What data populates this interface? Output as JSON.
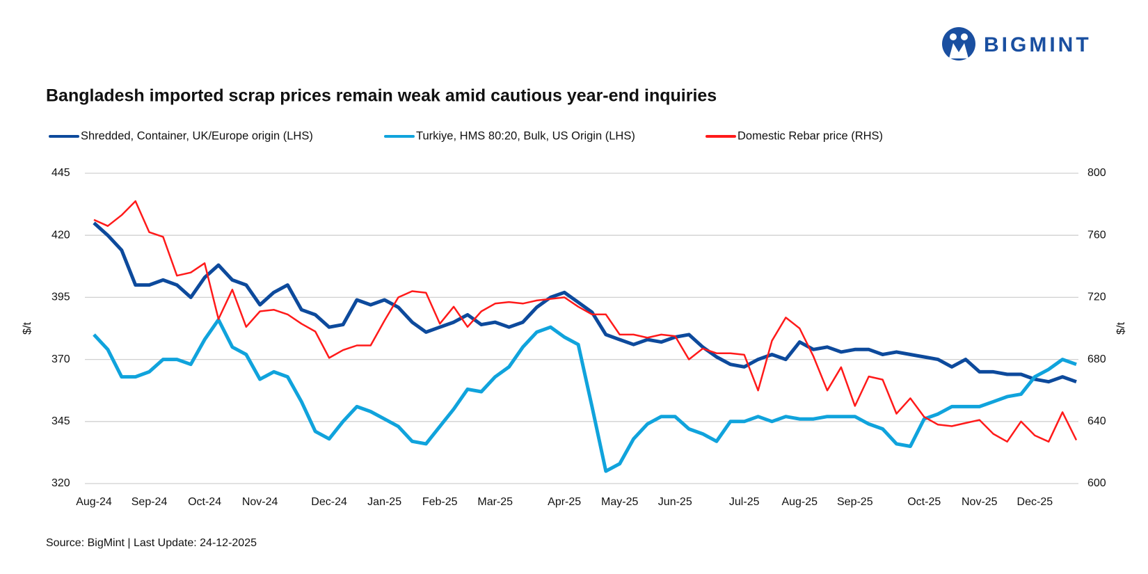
{
  "logo": "BIGMINT",
  "chart_data": {
    "type": "line",
    "title": "Bangladesh imported scrap prices remain weak amid cautious year-end inquiries",
    "source": "Source: BigMint | Last Update: 24-12-2025",
    "ylabel": "$/t",
    "y2label": "$/t",
    "categories": [
      "Aug-24",
      null,
      null,
      null,
      "Sep-24",
      null,
      null,
      null,
      "Oct-24",
      null,
      null,
      null,
      "Nov-24",
      null,
      null,
      null,
      null,
      "Dec-24",
      null,
      null,
      null,
      "Jan-25",
      null,
      null,
      null,
      "Feb-25",
      null,
      null,
      null,
      "Mar-25",
      null,
      null,
      null,
      null,
      "Apr-25",
      null,
      null,
      null,
      "May-25",
      null,
      null,
      null,
      "Jun-25",
      null,
      null,
      null,
      null,
      "Jul-25",
      null,
      null,
      null,
      "Aug-25",
      null,
      null,
      null,
      "Sep-25",
      null,
      null,
      null,
      null,
      "Oct-25",
      null,
      null,
      null,
      "Nov-25",
      null,
      null,
      null,
      "Dec-25",
      null,
      null,
      null
    ],
    "ylim": [
      320,
      445
    ],
    "yticks": [
      320,
      345,
      370,
      395,
      420,
      445
    ],
    "y2lim": [
      600,
      800
    ],
    "y2ticks": [
      600,
      640,
      680,
      720,
      760,
      800
    ],
    "grid": true,
    "series": [
      {
        "name": "Shredded, Container, UK/Europe origin (LHS)",
        "color": "#0d4a9c",
        "width": 5,
        "values": [
          425,
          420,
          414,
          400,
          400,
          402,
          400,
          395,
          403,
          408,
          402,
          400,
          392,
          397,
          400,
          390,
          388,
          383,
          384,
          394,
          392,
          394,
          391,
          385,
          381,
          383,
          385,
          388,
          384,
          385,
          383,
          385,
          391,
          395,
          397,
          393,
          389,
          380,
          378,
          376,
          378,
          377,
          379,
          380,
          375,
          371,
          368,
          367,
          370,
          372,
          370,
          377,
          374,
          375,
          373,
          374,
          374,
          372,
          373,
          372,
          371,
          370,
          367,
          370,
          365,
          365,
          364,
          364,
          362,
          361,
          363,
          361
        ]
      },
      {
        "name": "Turkiye, HMS 80:20, Bulk, US Origin (LHS)",
        "color": "#10a3dc",
        "width": 5,
        "values": [
          380,
          374,
          363,
          363,
          365,
          370,
          370,
          368,
          378,
          386,
          375,
          372,
          362,
          365,
          363,
          353,
          341,
          338,
          345,
          351,
          349,
          346,
          343,
          337,
          336,
          343,
          350,
          358,
          357,
          363,
          367,
          375,
          381,
          383,
          379,
          376,
          351,
          325,
          328,
          338,
          344,
          347,
          347,
          342,
          340,
          337,
          345,
          345,
          347,
          345,
          347,
          346,
          346,
          347,
          347,
          347,
          344,
          342,
          336,
          335,
          346,
          348,
          351,
          351,
          351,
          353,
          355,
          356,
          363,
          366,
          370,
          368
        ]
      },
      {
        "name": "Domestic Rebar price (RHS)",
        "color": "#ff1a1a",
        "width": 2.5,
        "axis": "y2",
        "values": [
          770,
          766,
          773,
          782,
          762,
          759,
          734,
          736,
          742,
          706,
          725,
          701,
          711,
          712,
          709,
          703,
          698,
          681,
          686,
          689,
          689,
          705,
          720,
          724,
          723,
          703,
          714,
          701,
          711,
          716,
          717,
          716,
          718,
          719,
          720,
          714,
          709,
          709,
          696,
          696,
          694,
          696,
          695,
          680,
          687,
          684,
          684,
          683,
          660,
          692,
          707,
          700,
          682,
          660,
          675,
          650,
          669,
          667,
          645,
          655,
          643,
          638,
          637,
          639,
          641,
          632,
          627,
          640,
          631,
          627,
          646,
          628
        ]
      }
    ]
  }
}
